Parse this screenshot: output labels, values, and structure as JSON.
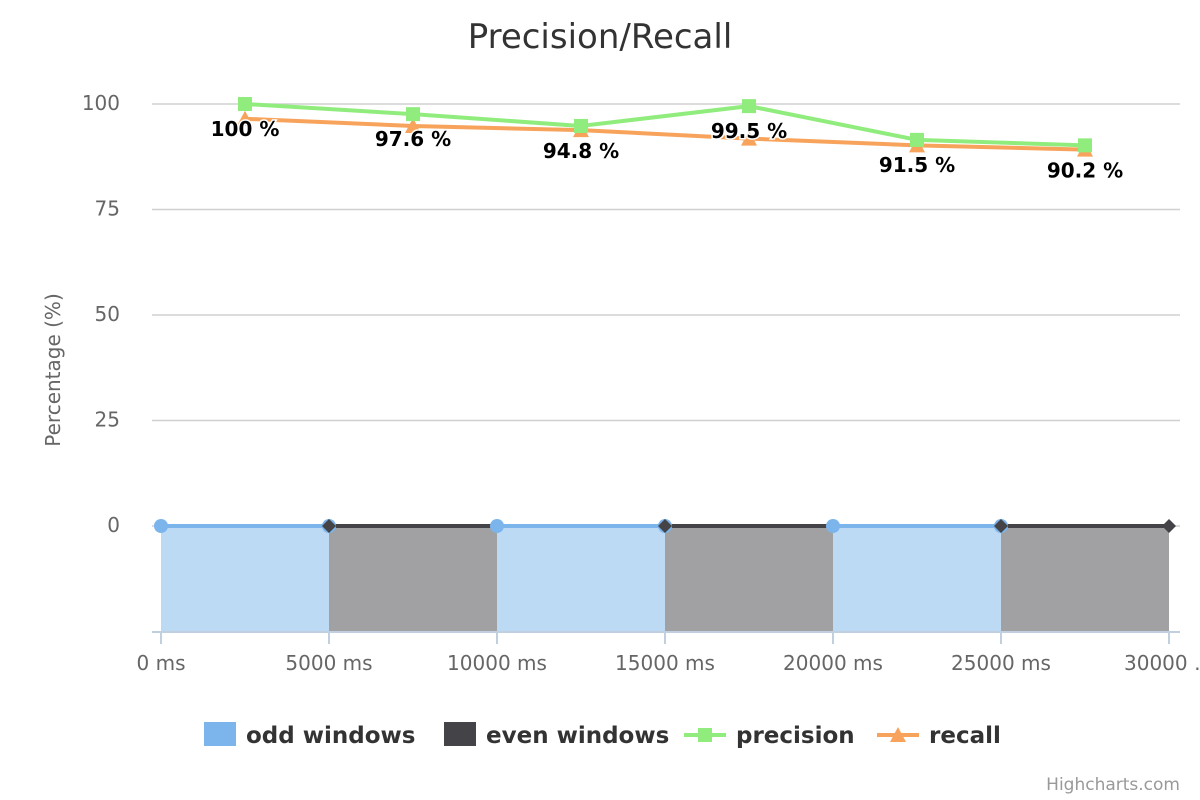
{
  "chart_data": {
    "type": "line",
    "title": "Precision/Recall",
    "xlabel": "",
    "ylabel": "Percentage (%)",
    "ylim": [
      -25,
      100
    ],
    "y_ticks": [
      0,
      25,
      50,
      75,
      100
    ],
    "xlim": [
      0,
      30000
    ],
    "x_ticks": [
      0,
      5000,
      10000,
      15000,
      20000,
      25000,
      30000
    ],
    "x_tick_labels": [
      "0 ms",
      "5000 ms",
      "10000 ms",
      "15000 ms",
      "20000 ms",
      "25000 ms",
      "30000 …"
    ],
    "grid": true,
    "legend_position": "bottom-center",
    "windows": [
      {
        "series": "odd windows",
        "start": 0,
        "end": 5000
      },
      {
        "series": "even windows",
        "start": 5000,
        "end": 10000
      },
      {
        "series": "odd windows",
        "start": 10000,
        "end": 15000
      },
      {
        "series": "even windows",
        "start": 15000,
        "end": 20000
      },
      {
        "series": "odd windows",
        "start": 20000,
        "end": 25000
      },
      {
        "series": "even windows",
        "start": 25000,
        "end": 30000
      }
    ],
    "series": [
      {
        "name": "odd windows",
        "color": "#7cb5ec",
        "marker": "circle"
      },
      {
        "name": "even windows",
        "color": "#434348",
        "marker": "diamond"
      },
      {
        "name": "precision",
        "color": "#90ed7d",
        "marker": "square",
        "x": [
          2500,
          7500,
          12500,
          17500,
          22500,
          27500
        ],
        "values": [
          100,
          97.6,
          94.8,
          99.5,
          91.5,
          90.2
        ],
        "data_labels": [
          "100 %",
          "97.6 %",
          "94.8 %",
          "99.5 %",
          "91.5 %",
          "90.2 %"
        ]
      },
      {
        "name": "recall",
        "color": "#f7a35c",
        "marker": "triangle",
        "x": [
          2500,
          7500,
          12500,
          17500,
          22500,
          27500
        ],
        "values": [
          96.5,
          94.8,
          93.8,
          91.8,
          90.2,
          89.2
        ]
      }
    ]
  },
  "credits": "Highcharts.com"
}
